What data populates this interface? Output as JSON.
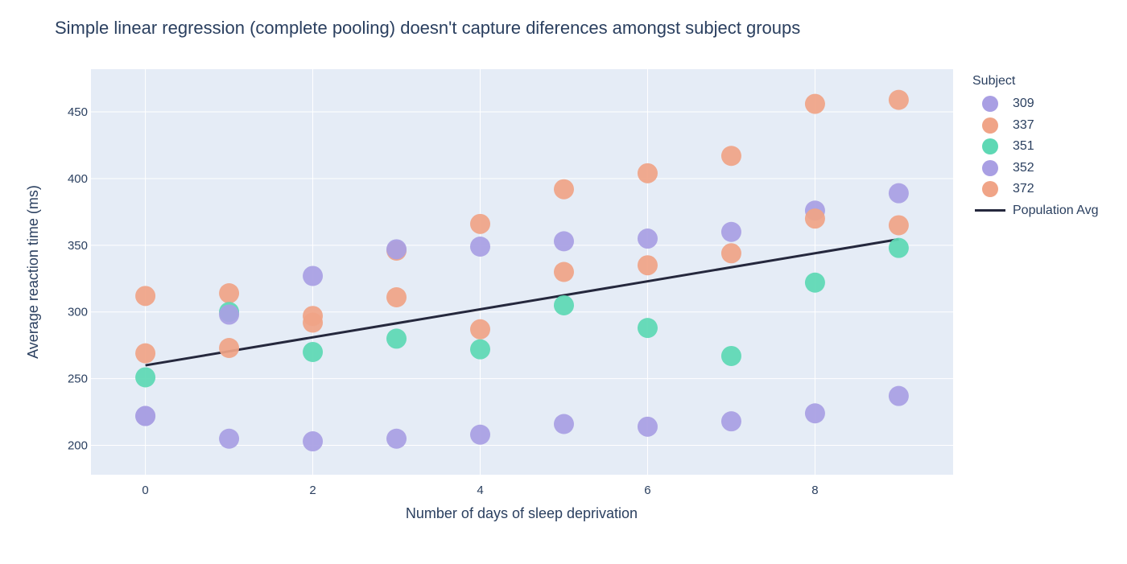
{
  "title": "Simple linear regression (complete pooling) doesn't capture diferences amongst subject groups",
  "legend": {
    "title": "Subject",
    "items": [
      {
        "label": "309",
        "kind": "marker",
        "color": "#a99fe3"
      },
      {
        "label": "337",
        "kind": "marker",
        "color": "#f0a487"
      },
      {
        "label": "351",
        "kind": "marker",
        "color": "#5ed8b4"
      },
      {
        "label": "352",
        "kind": "marker",
        "color": "#a99fe3"
      },
      {
        "label": "372",
        "kind": "marker",
        "color": "#f0a487"
      },
      {
        "label": "Population Avg",
        "kind": "line",
        "color": "#25283d"
      }
    ]
  },
  "chart_data": {
    "type": "scatter",
    "title": "Simple linear regression (complete pooling) doesn't capture diferences amongst subject groups",
    "xlabel": "Number of days of sleep deprivation",
    "ylabel": "Average reaction time (ms)",
    "xlim": [
      -0.65,
      9.65
    ],
    "ylim": [
      178,
      482
    ],
    "xticks": [
      0,
      2,
      4,
      6,
      8
    ],
    "yticks": [
      200,
      250,
      300,
      350,
      400,
      450
    ],
    "grid": true,
    "legend_position": "right",
    "series": [
      {
        "name": "309",
        "color": "#a99fe3",
        "x": [
          0,
          1,
          2,
          3,
          4,
          5,
          6,
          7,
          8,
          9
        ],
        "y": [
          222,
          205,
          203,
          205,
          208,
          216,
          214,
          218,
          224,
          237
        ]
      },
      {
        "name": "337",
        "color": "#f0a487",
        "x": [
          0,
          1,
          2,
          3,
          4,
          5,
          6,
          7,
          8,
          9
        ],
        "y": [
          312,
          314,
          292,
          346,
          366,
          392,
          404,
          417,
          456,
          459
        ]
      },
      {
        "name": "351",
        "color": "#5ed8b4",
        "x": [
          0,
          1,
          2,
          3,
          4,
          5,
          6,
          7,
          8,
          9
        ],
        "y": [
          251,
          300,
          270,
          280,
          272,
          305,
          288,
          267,
          322,
          348
        ]
      },
      {
        "name": "352",
        "color": "#a99fe3",
        "x": [
          0,
          1,
          2,
          3,
          4,
          5,
          6,
          7,
          8,
          9
        ],
        "y": [
          222,
          298,
          327,
          347,
          349,
          353,
          355,
          360,
          376,
          389
        ]
      },
      {
        "name": "372",
        "color": "#f0a487",
        "x": [
          0,
          1,
          2,
          3,
          4,
          5,
          6,
          7,
          8,
          9
        ],
        "y": [
          269,
          273,
          297,
          311,
          287,
          330,
          335,
          344,
          370,
          365
        ]
      }
    ],
    "lines": [
      {
        "name": "Population Avg",
        "color": "#25283d",
        "x": [
          0,
          9
        ],
        "y": [
          260,
          354.5
        ]
      }
    ]
  }
}
